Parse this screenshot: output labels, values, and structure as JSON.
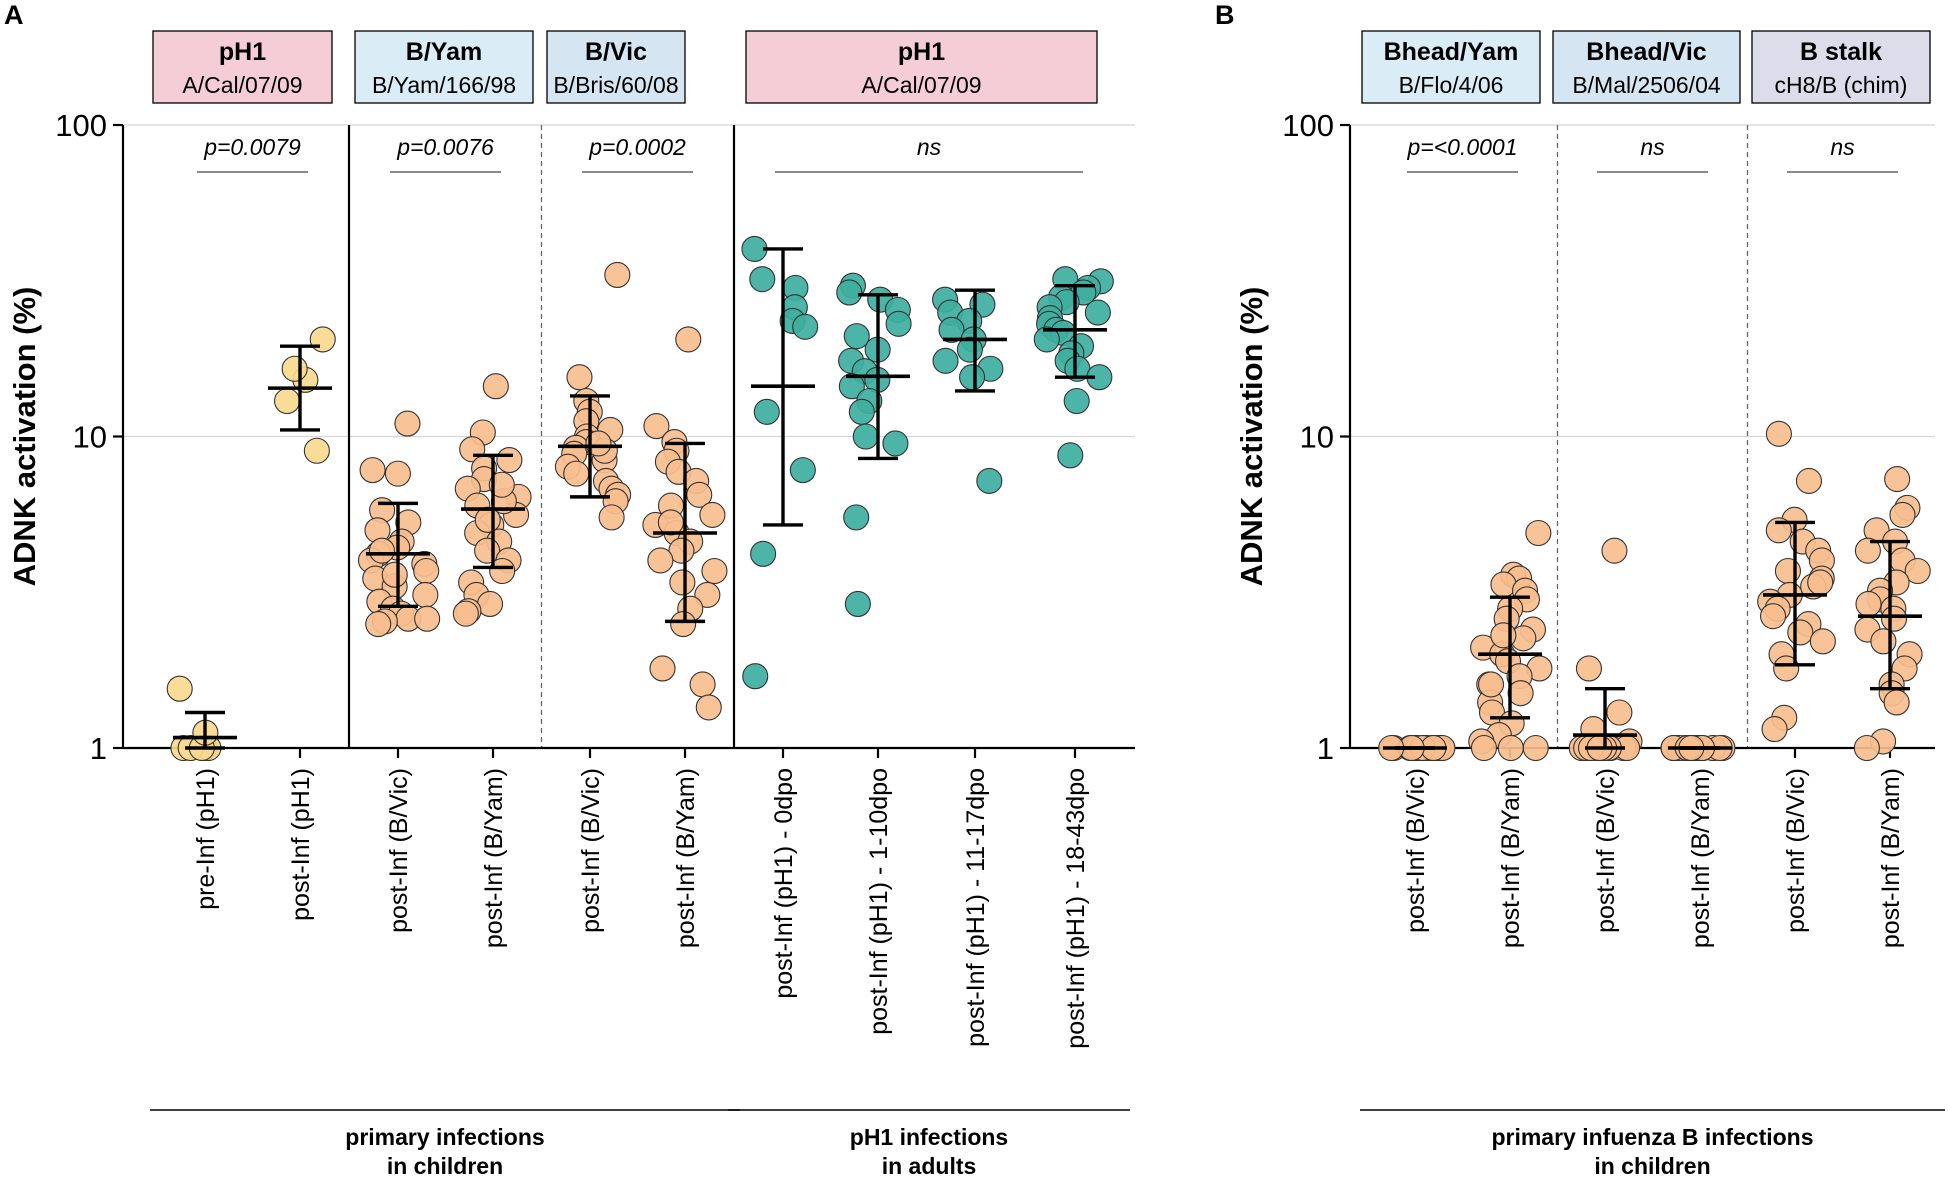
{
  "colors": {
    "ph1_box": "#f5cdd6",
    "byam_box": "#daecf6",
    "bvic_box": "#d5e5f2",
    "stalk_box": "#dcdcea",
    "orange": "#f7be8e",
    "yellow": "#f9d98f",
    "teal": "#3eafa0",
    "ink": "#000000"
  },
  "chart_data": [
    {
      "panel": "A",
      "type": "scatter",
      "scale": "log",
      "ylabel": "ADNK activation (%)",
      "ylim": [
        1,
        100
      ],
      "yticks": [
        1,
        10,
        100
      ],
      "headers": [
        {
          "title": "pH1",
          "strain": "A/Cal/07/09",
          "color": "#f5cdd6",
          "groups": [
            0,
            1
          ]
        },
        {
          "title": "B/Yam",
          "strain": "B/Yam/166/98",
          "color": "#daecf6",
          "groups": [
            2,
            3
          ]
        },
        {
          "title": "B/Vic",
          "strain": "B/Bris/60/08",
          "color": "#d5e5f2",
          "groups": [
            4,
            5
          ]
        },
        {
          "title": "pH1",
          "strain": "A/Cal/07/09",
          "color": "#f5cdd6",
          "groups": [
            6,
            9
          ]
        }
      ],
      "separators": [
        {
          "after": 1,
          "style": "solid"
        },
        {
          "after": 3,
          "style": "dashed"
        },
        {
          "after": 5,
          "style": "solid"
        }
      ],
      "comparisons": [
        {
          "label": "p=0.0079",
          "from": 0,
          "to": 1
        },
        {
          "label": "p=0.0076",
          "from": 2,
          "to": 3
        },
        {
          "label": "p=0.0002",
          "from": 4,
          "to": 5
        },
        {
          "label": "ns",
          "from": 6,
          "to": 9
        }
      ],
      "group_labels": [
        {
          "line1": "primary infections",
          "line2": "in children",
          "from": 0,
          "to": 5
        },
        {
          "line1": "pH1 infections",
          "line2": "in adults",
          "from": 6,
          "to": 9
        }
      ],
      "series": [
        {
          "name": "pre-Inf (pH1)",
          "color": "#f9d98f",
          "mean": 1.08,
          "sd_low": 1.0,
          "sd_high": 1.3,
          "values": [
            1.0,
            1.0,
            1.0,
            1.0,
            1.0,
            1.12,
            1.55
          ]
        },
        {
          "name": "post-Inf (pH1)",
          "color": "#f9d98f",
          "mean": 14.3,
          "sd_low": 10.5,
          "sd_high": 19.5,
          "values": [
            20.5,
            15.2,
            16.5,
            13.0,
            9.0
          ]
        },
        {
          "name": "post-Inf (B/Vic)",
          "color": "#f7be8e",
          "mean": 4.2,
          "sd_low": 2.85,
          "sd_high": 6.1,
          "values": [
            11.0,
            7.8,
            7.6,
            5.8,
            5.3,
            5.0,
            4.6,
            4.4,
            4.2,
            4.0,
            3.9,
            3.7,
            3.5,
            3.3,
            3.1,
            2.95,
            2.8,
            2.7,
            2.6,
            2.55,
            2.5,
            2.6,
            3.6,
            4.3
          ]
        },
        {
          "name": "post-Inf (B/Yam)",
          "color": "#f7be8e",
          "mean": 5.85,
          "sd_low": 3.8,
          "sd_high": 8.7,
          "values": [
            14.5,
            10.3,
            9.1,
            8.4,
            7.9,
            7.3,
            6.8,
            6.4,
            6.0,
            5.6,
            5.2,
            4.9,
            4.6,
            4.3,
            4.0,
            3.7,
            3.4,
            3.1,
            2.9,
            2.75,
            2.7,
            5.4,
            6.2,
            7.0
          ]
        },
        {
          "name": "post-Inf (B/Vic)",
          "color": "#f7be8e",
          "mean": 9.3,
          "sd_low": 6.4,
          "sd_high": 13.5,
          "values": [
            33.0,
            15.5,
            13.0,
            12.0,
            11.2,
            10.5,
            10.0,
            9.6,
            9.2,
            8.8,
            8.4,
            8.0,
            7.6,
            7.2,
            6.8,
            6.5,
            6.2,
            5.5,
            9.0,
            9.5
          ]
        },
        {
          "name": "post-Inf (B/Yam)",
          "color": "#f7be8e",
          "mean": 4.9,
          "sd_low": 2.55,
          "sd_high": 9.5,
          "values": [
            20.5,
            10.8,
            9.6,
            9.0,
            8.3,
            7.7,
            7.2,
            6.5,
            6.0,
            5.6,
            5.2,
            4.9,
            4.6,
            4.3,
            4.0,
            3.7,
            3.4,
            3.1,
            2.8,
            2.5,
            1.8,
            1.6,
            1.35,
            5.3
          ]
        },
        {
          "name": "post-Inf (pH1) - 0dpo",
          "color": "#3eafa0",
          "mean": 14.5,
          "sd_low": 5.2,
          "sd_high": 40.0,
          "values": [
            40.0,
            32.0,
            30.0,
            26.0,
            23.5,
            22.5,
            12.0,
            7.8,
            4.2,
            1.7
          ]
        },
        {
          "name": "post-Inf (pH1) - 1-10dpo",
          "color": "#3eafa0",
          "mean": 15.6,
          "sd_low": 8.5,
          "sd_high": 28.5,
          "values": [
            30.5,
            29.0,
            27.5,
            25.5,
            23.0,
            21.0,
            19.0,
            17.5,
            16.2,
            15.2,
            14.5,
            13.0,
            12.0,
            10.0,
            9.5,
            5.5,
            2.9
          ]
        },
        {
          "name": "post-Inf (pH1) - 11-17dpo",
          "color": "#3eafa0",
          "mean": 20.5,
          "sd_low": 14.0,
          "sd_high": 29.5,
          "values": [
            27.5,
            26.5,
            25.0,
            23.5,
            22.0,
            20.5,
            19.0,
            17.5,
            16.5,
            15.5,
            7.2
          ]
        },
        {
          "name": "post-Inf (pH1) - 18-43dpo",
          "color": "#3eafa0",
          "mean": 22.0,
          "sd_low": 15.5,
          "sd_high": 30.5,
          "values": [
            32.0,
            31.5,
            30.0,
            29.0,
            28.0,
            27.0,
            26.0,
            25.0,
            24.0,
            23.0,
            22.0,
            21.5,
            20.5,
            19.5,
            18.5,
            17.5,
            16.5,
            15.5,
            13.0,
            8.7
          ]
        }
      ]
    },
    {
      "panel": "B",
      "type": "scatter",
      "scale": "log",
      "ylabel": "ADNK activation (%)",
      "ylim": [
        1,
        100
      ],
      "yticks": [
        1,
        10,
        100
      ],
      "headers": [
        {
          "title": "Bhead/Yam",
          "strain": "B/Flo/4/06",
          "color": "#daecf6",
          "groups": [
            0,
            1
          ]
        },
        {
          "title": "Bhead/Vic",
          "strain": "B/Mal/2506/04",
          "color": "#d5e5f2",
          "groups": [
            2,
            3
          ]
        },
        {
          "title": "B stalk",
          "strain": "cH8/B (chim)",
          "color": "#dcdcea",
          "groups": [
            4,
            5
          ]
        }
      ],
      "separators": [
        {
          "after": 1,
          "style": "dashed"
        },
        {
          "after": 3,
          "style": "dashed"
        }
      ],
      "comparisons": [
        {
          "label": "p=<0.0001",
          "from": 0,
          "to": 1
        },
        {
          "label": "ns",
          "from": 2,
          "to": 3
        },
        {
          "label": "ns",
          "from": 4,
          "to": 5
        }
      ],
      "group_labels": [
        {
          "line1": "primary infuenza B infections",
          "line2": "in children",
          "from": 0,
          "to": 5
        }
      ],
      "series": [
        {
          "name": "post-Inf (B/Vic)",
          "color": "#f7be8e",
          "mean": 1.0,
          "sd_low": 1.0,
          "sd_high": 1.0,
          "values": [
            1,
            1,
            1,
            1,
            1,
            1,
            1,
            1,
            1,
            1,
            1,
            1,
            1,
            1,
            1,
            1,
            1,
            1,
            1,
            1
          ]
        },
        {
          "name": "post-Inf (B/Yam)",
          "color": "#f7be8e",
          "mean": 2.0,
          "sd_low": 1.25,
          "sd_high": 3.05,
          "values": [
            4.9,
            3.6,
            3.5,
            3.35,
            3.2,
            3.0,
            2.8,
            2.6,
            2.4,
            2.25,
            2.1,
            2.0,
            1.9,
            1.8,
            1.7,
            1.6,
            1.5,
            1.4,
            1.3,
            1.2,
            1.1,
            1.05,
            1.0,
            1.0,
            1.0,
            2.3,
            1.6
          ]
        },
        {
          "name": "post-Inf (B/Vic)",
          "color": "#f7be8e",
          "mean": 1.1,
          "sd_low": 1.0,
          "sd_high": 1.55,
          "values": [
            4.3,
            1.8,
            1.3,
            1.15,
            1.05,
            1,
            1,
            1,
            1,
            1,
            1,
            1,
            1,
            1,
            1,
            1,
            1,
            1
          ]
        },
        {
          "name": "post-Inf (B/Yam)",
          "color": "#f7be8e",
          "mean": 1.0,
          "sd_low": 1.0,
          "sd_high": 1.0,
          "values": [
            1,
            1,
            1,
            1,
            1,
            1,
            1,
            1,
            1,
            1,
            1,
            1,
            1,
            1,
            1,
            1,
            1,
            1,
            1,
            1
          ]
        },
        {
          "name": "post-Inf (B/Vic)",
          "color": "#f7be8e",
          "mean": 3.1,
          "sd_low": 1.85,
          "sd_high": 5.3,
          "values": [
            10.2,
            7.2,
            5.4,
            5.0,
            4.6,
            4.3,
            4.0,
            3.7,
            3.5,
            3.3,
            3.1,
            2.95,
            2.8,
            2.65,
            2.5,
            2.35,
            2.2,
            2.0,
            1.8,
            1.25,
            1.15,
            3.4
          ]
        },
        {
          "name": "post-Inf (B/Yam)",
          "color": "#f7be8e",
          "mean": 2.65,
          "sd_low": 1.55,
          "sd_high": 4.6,
          "values": [
            7.3,
            5.9,
            5.6,
            5.0,
            4.6,
            4.3,
            4.0,
            3.7,
            3.4,
            3.2,
            3.0,
            2.8,
            2.6,
            2.4,
            2.2,
            2.0,
            1.8,
            1.6,
            1.5,
            1.4,
            1.05,
            1.0,
            2.9
          ]
        }
      ]
    }
  ]
}
